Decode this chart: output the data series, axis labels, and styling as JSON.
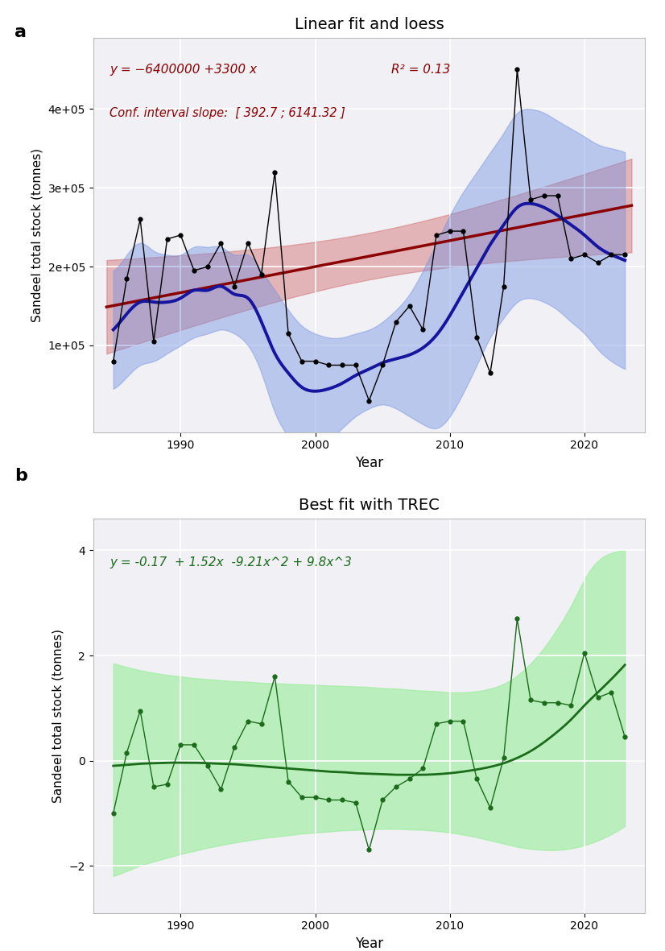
{
  "title_a": "Linear fit and loess",
  "title_b": "Best fit with TREC",
  "xlabel": "Year",
  "ylabel": "Sandeel total stock (tonnes)",
  "label_a": "a",
  "label_b": "b",
  "years": [
    1985,
    1986,
    1987,
    1988,
    1989,
    1990,
    1991,
    1992,
    1993,
    1994,
    1995,
    1996,
    1997,
    1998,
    1999,
    2000,
    2001,
    2002,
    2003,
    2004,
    2005,
    2006,
    2007,
    2008,
    2009,
    2010,
    2011,
    2012,
    2013,
    2014,
    2015,
    2016,
    2017,
    2018,
    2019,
    2020,
    2021,
    2022,
    2023
  ],
  "values_a": [
    80000,
    185000,
    260000,
    105000,
    235000,
    240000,
    195000,
    200000,
    230000,
    175000,
    230000,
    190000,
    320000,
    115000,
    80000,
    80000,
    75000,
    75000,
    75000,
    30000,
    75000,
    130000,
    150000,
    120000,
    240000,
    245000,
    245000,
    110000,
    65000,
    175000,
    450000,
    285000,
    290000,
    290000,
    210000,
    215000,
    205000,
    215000,
    215000
  ],
  "values_b": [
    -1.0,
    0.15,
    0.95,
    -0.5,
    -0.45,
    0.3,
    0.3,
    -0.1,
    -0.55,
    0.25,
    0.75,
    0.7,
    1.6,
    -0.4,
    -0.7,
    -0.7,
    -0.75,
    -0.75,
    -0.8,
    -1.7,
    -0.75,
    -0.5,
    -0.35,
    -0.15,
    0.7,
    0.75,
    0.75,
    -0.35,
    -0.9,
    0.05,
    2.7,
    1.15,
    1.1,
    1.1,
    1.05,
    2.05,
    1.2,
    1.3,
    0.45
  ],
  "linear_slope": 3300,
  "linear_intercept": -6400000,
  "eq_text_a1": "y = −6400000 +3300 x",
  "eq_text_a2": "R² = 0.13",
  "ci_text_a": "Conf. interval slope:  [ 392.7 ; 6141.32 ]",
  "eq_text_b": "y = -0.17  + 1.52x  -9.21x^2 + 9.8x^3",
  "red_color": "#8B0000",
  "red_fill": "#CD5C5C",
  "blue_color": "#1515a0",
  "blue_fill": "#7090e0",
  "green_color": "#1a6b1a",
  "green_fill": "#90EE90",
  "bg_color": "#f0f0f5",
  "grid_color": "#ffffff",
  "loess_upper": [
    195000,
    215000,
    230000,
    220000,
    215000,
    215000,
    225000,
    225000,
    225000,
    215000,
    215000,
    195000,
    170000,
    145000,
    125000,
    115000,
    110000,
    110000,
    115000,
    120000,
    130000,
    145000,
    165000,
    195000,
    230000,
    265000,
    295000,
    320000,
    345000,
    370000,
    395000,
    400000,
    395000,
    385000,
    375000,
    365000,
    355000,
    350000,
    345000
  ],
  "loess_lower": [
    45000,
    60000,
    75000,
    80000,
    90000,
    100000,
    110000,
    115000,
    120000,
    115000,
    100000,
    65000,
    15000,
    -15000,
    -30000,
    -30000,
    -20000,
    -5000,
    10000,
    20000,
    25000,
    20000,
    10000,
    0,
    -5000,
    10000,
    40000,
    75000,
    110000,
    135000,
    155000,
    160000,
    155000,
    145000,
    130000,
    115000,
    95000,
    80000,
    70000
  ],
  "loess_y": [
    120000,
    140000,
    155000,
    155000,
    155000,
    160000,
    170000,
    170000,
    175000,
    165000,
    160000,
    130000,
    90000,
    65000,
    47000,
    42000,
    45000,
    52000,
    62000,
    70000,
    78000,
    83000,
    88000,
    97000,
    113000,
    138000,
    168000,
    198000,
    228000,
    253000,
    275000,
    280000,
    275000,
    265000,
    253000,
    240000,
    225000,
    215000,
    208000
  ],
  "green_upper": [
    1.85,
    1.78,
    1.72,
    1.67,
    1.63,
    1.6,
    1.57,
    1.55,
    1.53,
    1.51,
    1.5,
    1.48,
    1.47,
    1.46,
    1.45,
    1.44,
    1.43,
    1.42,
    1.41,
    1.4,
    1.38,
    1.37,
    1.35,
    1.33,
    1.32,
    1.3,
    1.3,
    1.32,
    1.37,
    1.46,
    1.62,
    1.85,
    2.15,
    2.52,
    2.95,
    3.45,
    3.8,
    3.95,
    4.02
  ],
  "green_lower": [
    -2.2,
    -2.1,
    -2.0,
    -1.92,
    -1.85,
    -1.78,
    -1.72,
    -1.66,
    -1.61,
    -1.56,
    -1.52,
    -1.48,
    -1.45,
    -1.42,
    -1.39,
    -1.37,
    -1.35,
    -1.33,
    -1.32,
    -1.31,
    -1.3,
    -1.3,
    -1.31,
    -1.32,
    -1.34,
    -1.37,
    -1.41,
    -1.46,
    -1.52,
    -1.58,
    -1.64,
    -1.68,
    -1.7,
    -1.7,
    -1.67,
    -1.61,
    -1.52,
    -1.4,
    -1.25
  ],
  "trec_y": [
    -0.1,
    -0.08,
    -0.06,
    -0.05,
    -0.04,
    -0.04,
    -0.04,
    -0.05,
    -0.06,
    -0.07,
    -0.09,
    -0.11,
    -0.13,
    -0.15,
    -0.17,
    -0.19,
    -0.21,
    -0.22,
    -0.24,
    -0.25,
    -0.26,
    -0.27,
    -0.27,
    -0.27,
    -0.26,
    -0.24,
    -0.21,
    -0.17,
    -0.12,
    -0.05,
    0.05,
    0.18,
    0.35,
    0.55,
    0.78,
    1.05,
    1.3,
    1.55,
    1.82
  ]
}
